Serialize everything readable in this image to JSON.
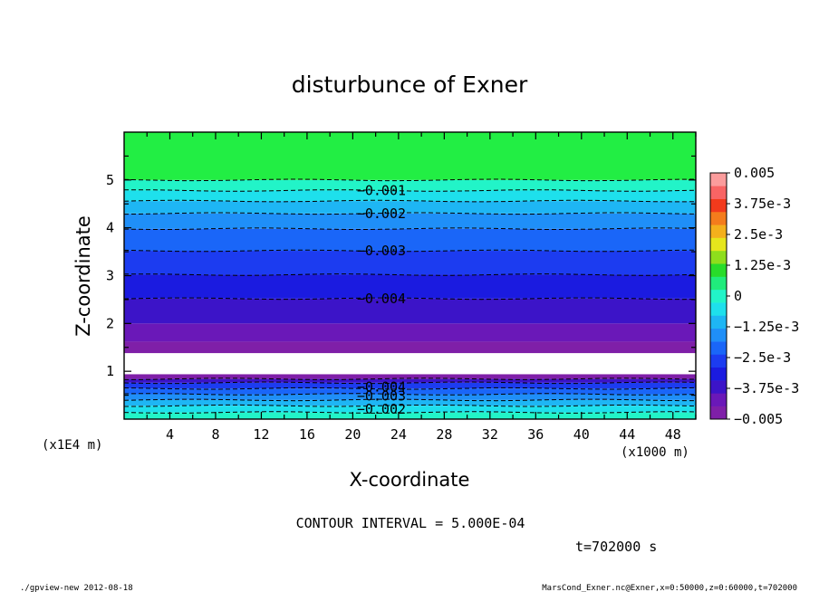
{
  "chart_data": {
    "type": "heatmap",
    "title": "disturbunce of Exner",
    "xlabel": "X-coordinate",
    "ylabel": "Z-coordinate",
    "x_unit": "(x1000 m)",
    "y_unit": "(x1E4 m)",
    "xlim": [
      0,
      50
    ],
    "ylim": [
      0,
      6
    ],
    "x_ticks": [
      4,
      8,
      12,
      16,
      20,
      24,
      28,
      32,
      36,
      40,
      44,
      48
    ],
    "y_ticks": [
      1,
      2,
      3,
      4,
      5
    ],
    "contour_interval_text": "CONTOUR INTERVAL = 5.000E-04",
    "time_text": "t=702000 s",
    "colorbar": {
      "min": -0.005,
      "max": 0.005,
      "tick_values": [
        0.005,
        0.00375,
        0.0025,
        0.00125,
        0,
        -0.00125,
        -0.0025,
        -0.00375,
        -0.005
      ],
      "tick_labels": [
        "0.005",
        "3.75e-3",
        "2.5e-3",
        "1.25e-3",
        "0",
        "−1.25e-3",
        "−2.5e-3",
        "−3.75e-3",
        "−0.005"
      ],
      "colors_low_to_high": [
        "#7f1fa8",
        "#6a18b8",
        "#3c14c8",
        "#1b1be0",
        "#1c3cf0",
        "#1a66f8",
        "#1f8ff8",
        "#1eb6f4",
        "#1ee0ec",
        "#22f4c8",
        "#20ec7c",
        "#28dc2a",
        "#8ede1c",
        "#e6e61c",
        "#f4b01c",
        "#f47c1c",
        "#f23a1c",
        "#f86464",
        "#fb9c9c"
      ]
    },
    "bands": [
      {
        "z0": 0.0,
        "z1": 0.14,
        "color": "#22f4c8"
      },
      {
        "z0": 0.14,
        "z1": 0.28,
        "color": "#1ee0ec"
      },
      {
        "z0": 0.28,
        "z1": 0.4,
        "color": "#1eb6f4"
      },
      {
        "z0": 0.4,
        "z1": 0.52,
        "color": "#1f8ff8"
      },
      {
        "z0": 0.52,
        "z1": 0.64,
        "color": "#1a66f8"
      },
      {
        "z0": 0.64,
        "z1": 0.76,
        "color": "#1c3cf0"
      },
      {
        "z0": 0.76,
        "z1": 0.84,
        "color": "#3c14c8"
      },
      {
        "z0": 0.84,
        "z1": 0.94,
        "color": "#7f1fa8"
      },
      {
        "z0": 0.94,
        "z1": 1.38,
        "color": "#ffffff"
      },
      {
        "z0": 1.38,
        "z1": 1.62,
        "color": "#7f1fa8"
      },
      {
        "z0": 1.62,
        "z1": 2.0,
        "color": "#6a18b8"
      },
      {
        "z0": 2.0,
        "z1": 2.52,
        "color": "#3c14c8"
      },
      {
        "z0": 2.52,
        "z1": 3.02,
        "color": "#1b1be0"
      },
      {
        "z0": 3.02,
        "z1": 3.52,
        "color": "#1c3cf0"
      },
      {
        "z0": 3.52,
        "z1": 3.98,
        "color": "#1a66f8"
      },
      {
        "z0": 3.98,
        "z1": 4.3,
        "color": "#1f8ff8"
      },
      {
        "z0": 4.3,
        "z1": 4.56,
        "color": "#1eb6f4"
      },
      {
        "z0": 4.56,
        "z1": 4.78,
        "color": "#1ee0ec"
      },
      {
        "z0": 4.78,
        "z1": 5.0,
        "color": "#22f4c8"
      },
      {
        "z0": 5.0,
        "z1": 6.0,
        "color": "#22ee44"
      }
    ],
    "contour_lines_z": [
      0.14,
      0.28,
      0.4,
      0.52,
      0.64,
      0.76,
      0.84,
      2.52,
      3.02,
      3.52,
      3.98,
      4.3,
      4.56,
      4.78,
      5.0
    ],
    "contour_labels": [
      {
        "text": "−0.001",
        "x": 22.5,
        "z": 4.78
      },
      {
        "text": "−0.002",
        "x": 22.5,
        "z": 4.3
      },
      {
        "text": "−0.003",
        "x": 22.5,
        "z": 3.52
      },
      {
        "text": "−0.004",
        "x": 22.5,
        "z": 2.52
      },
      {
        "text": "−0.004",
        "x": 22.5,
        "z": 0.67
      },
      {
        "text": "−0.003",
        "x": 22.5,
        "z": 0.48
      },
      {
        "text": "−0.002",
        "x": 22.5,
        "z": 0.21
      }
    ]
  },
  "footer": {
    "left": "./gpview-new   2012-08-18",
    "right": "MarsCond_Exner.nc@Exner,x=0:50000,z=0:60000,t=702000"
  }
}
